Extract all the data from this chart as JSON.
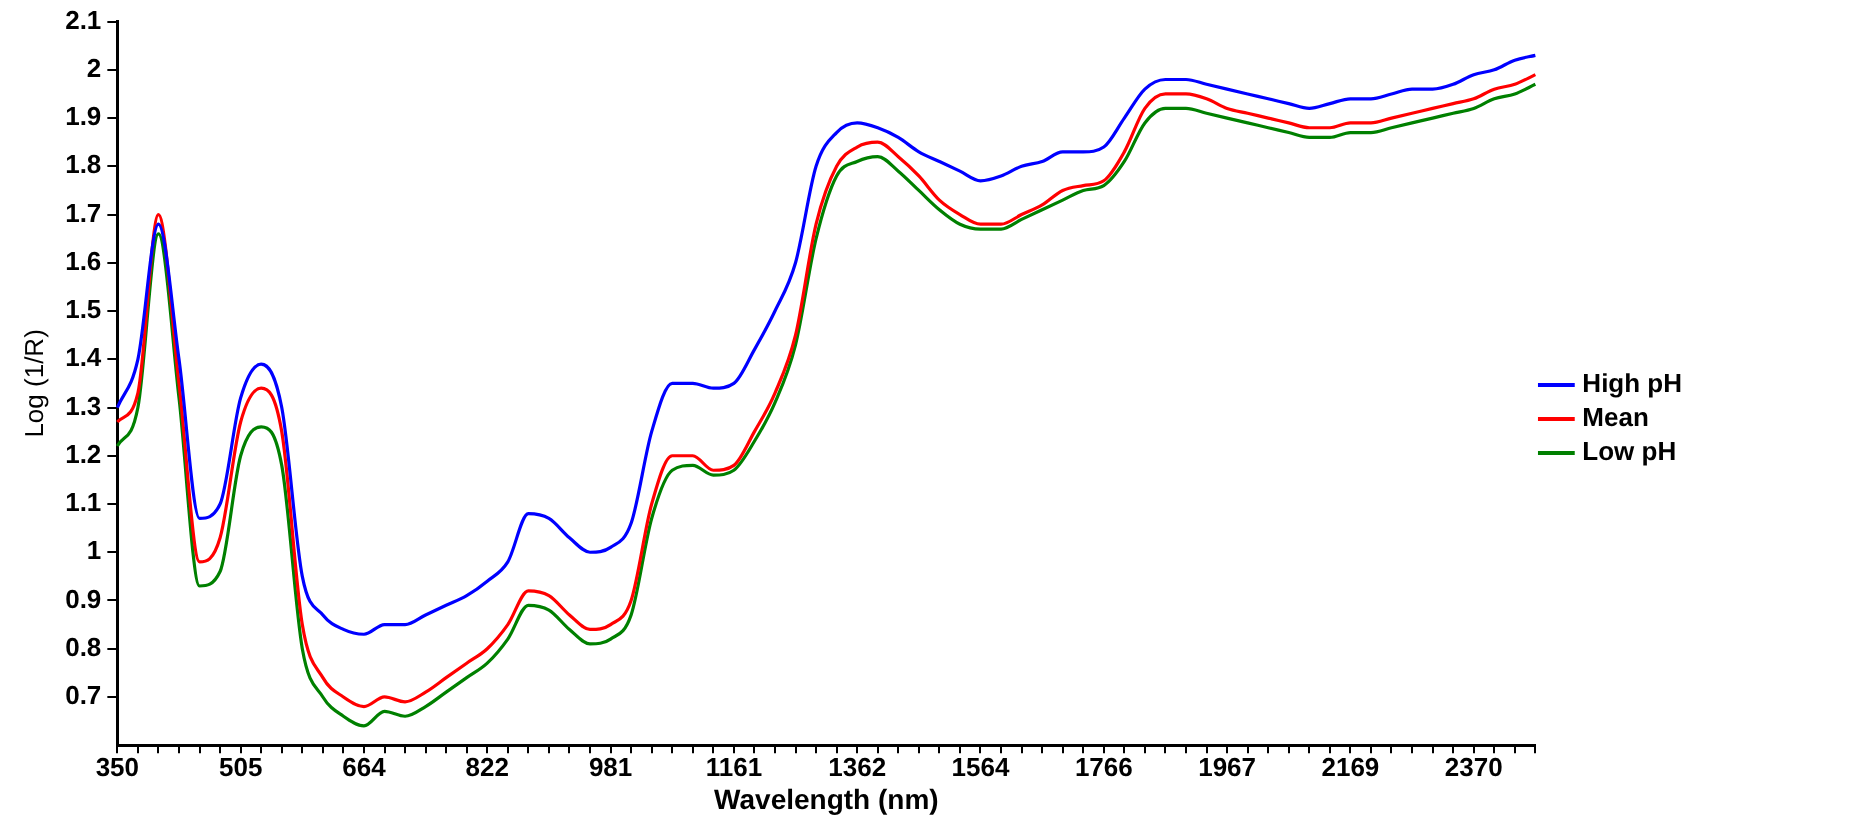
{
  "chart_data": {
    "type": "line",
    "xlabel": "Wavelength (nm)",
    "ylabel": "Log (1/R)",
    "categories": [
      "350",
      null,
      null,
      null,
      null,
      null,
      "505",
      null,
      null,
      null,
      null,
      null,
      "664",
      null,
      null,
      null,
      null,
      null,
      "822",
      null,
      null,
      null,
      null,
      null,
      "981",
      null,
      null,
      null,
      null,
      null,
      "1161",
      null,
      null,
      null,
      null,
      null,
      "1362",
      null,
      null,
      null,
      null,
      null,
      "1564",
      null,
      null,
      null,
      null,
      null,
      "1766",
      null,
      null,
      null,
      null,
      null,
      "1967",
      null,
      null,
      null,
      null,
      null,
      "2169",
      null,
      null,
      null,
      null,
      null,
      "2370",
      null,
      null,
      null
    ],
    "series": [
      {
        "name": "High pH",
        "color": "#0000ff",
        "values": [
          1.3,
          1.4,
          1.68,
          1.4,
          1.07,
          1.1,
          1.32,
          1.39,
          1.3,
          0.95,
          0.87,
          0.84,
          0.83,
          0.85,
          0.85,
          0.87,
          0.89,
          0.91,
          0.94,
          0.98,
          1.08,
          1.07,
          1.03,
          1.0,
          1.01,
          1.06,
          1.25,
          1.35,
          1.35,
          1.34,
          1.35,
          1.42,
          1.5,
          1.6,
          1.8,
          1.87,
          1.89,
          1.88,
          1.86,
          1.83,
          1.81,
          1.79,
          1.77,
          1.78,
          1.8,
          1.81,
          1.83,
          1.83,
          1.84,
          1.9,
          1.96,
          1.98,
          1.98,
          1.97,
          1.96,
          1.95,
          1.94,
          1.93,
          1.92,
          1.93,
          1.94,
          1.94,
          1.95,
          1.96,
          1.96,
          1.97,
          1.99,
          2.0,
          2.02,
          2.03
        ]
      },
      {
        "name": "Mean",
        "color": "#ff0000",
        "values": [
          1.27,
          1.33,
          1.7,
          1.35,
          0.98,
          1.03,
          1.27,
          1.34,
          1.25,
          0.85,
          0.74,
          0.7,
          0.68,
          0.7,
          0.69,
          0.71,
          0.74,
          0.77,
          0.8,
          0.85,
          0.92,
          0.91,
          0.87,
          0.84,
          0.85,
          0.9,
          1.1,
          1.2,
          1.2,
          1.17,
          1.18,
          1.25,
          1.33,
          1.45,
          1.68,
          1.8,
          1.84,
          1.85,
          1.82,
          1.78,
          1.73,
          1.7,
          1.68,
          1.68,
          1.7,
          1.72,
          1.75,
          1.76,
          1.77,
          1.83,
          1.92,
          1.95,
          1.95,
          1.94,
          1.92,
          1.91,
          1.9,
          1.89,
          1.88,
          1.88,
          1.89,
          1.89,
          1.9,
          1.91,
          1.92,
          1.93,
          1.94,
          1.96,
          1.97,
          1.99
        ]
      },
      {
        "name": "Low pH",
        "color": "#008000",
        "values": [
          1.22,
          1.3,
          1.66,
          1.32,
          0.93,
          0.96,
          1.2,
          1.26,
          1.18,
          0.8,
          0.7,
          0.66,
          0.64,
          0.67,
          0.66,
          0.68,
          0.71,
          0.74,
          0.77,
          0.82,
          0.89,
          0.88,
          0.84,
          0.81,
          0.82,
          0.87,
          1.07,
          1.17,
          1.18,
          1.16,
          1.17,
          1.23,
          1.31,
          1.43,
          1.65,
          1.78,
          1.81,
          1.82,
          1.79,
          1.75,
          1.71,
          1.68,
          1.67,
          1.67,
          1.69,
          1.71,
          1.73,
          1.75,
          1.76,
          1.81,
          1.89,
          1.92,
          1.92,
          1.91,
          1.9,
          1.89,
          1.88,
          1.87,
          1.86,
          1.86,
          1.87,
          1.87,
          1.88,
          1.89,
          1.9,
          1.91,
          1.92,
          1.94,
          1.95,
          1.97
        ]
      }
    ],
    "ylim": [
      0.6,
      2.1
    ],
    "yticks": [
      0.7,
      0.8,
      0.9,
      1,
      1.1,
      1.2,
      1.3,
      1.4,
      1.5,
      1.6,
      1.7,
      1.8,
      1.9,
      2,
      2.1
    ],
    "grid": false,
    "legend": "right",
    "marker": "none",
    "line_style": "solid"
  }
}
